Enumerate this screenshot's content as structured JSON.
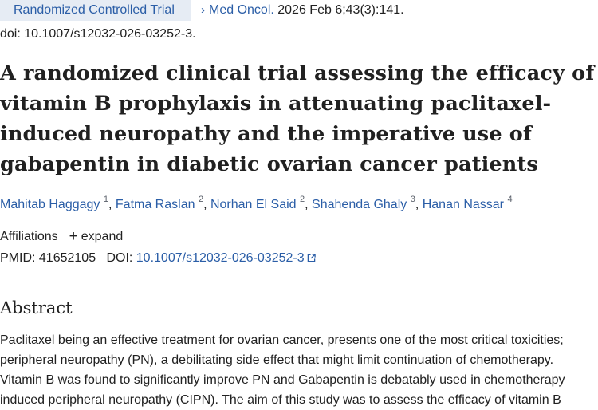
{
  "header": {
    "publication_type": "Randomized Controlled Trial",
    "chevron_glyph": "›",
    "journal": "Med Oncol.",
    "citation": " 2026 Feb 6;43(3):141.",
    "doi_line": "doi: 10.1007/s12032-026-03252-3."
  },
  "title": {
    "line1": "A randomized clinical trial assessing the efficacy of",
    "line2": "vitamin B prophylaxis in attenuating paclitaxel-",
    "line3": "induced neuropathy and the imperative use of",
    "line4": "gabapentin in diabetic ovarian cancer patients"
  },
  "authors": [
    {
      "name": "Mahitab Haggagy",
      "sup": "1"
    },
    {
      "name": "Fatma Raslan",
      "sup": "2"
    },
    {
      "name": "Norhan El Said",
      "sup": "2"
    },
    {
      "name": "Shahenda Ghaly",
      "sup": "3"
    },
    {
      "name": "Hanan Nassar",
      "sup": "4"
    }
  ],
  "affiliations": {
    "label": "Affiliations",
    "expand_icon": "plus-icon",
    "expand_label": "expand"
  },
  "identifiers": {
    "pmid_label": "PMID:",
    "pmid": "41652105",
    "doi_label": "DOI:",
    "doi": "10.1007/s12032-026-03252-3",
    "doi_link_icon": "external-link-icon"
  },
  "abstract": {
    "heading": "Abstract",
    "line1": "Paclitaxel being an effective treatment for ovarian cancer, presents one of the most critical toxicities;",
    "line2": "peripheral neuropathy (PN), a debilitating side effect that might limit continuation of chemotherapy.",
    "line3": "Vitamin B was found to significantly improve PN and Gabapentin is debatably used in chemotherapy",
    "line4": "induced peripheral neuropathy (CIPN). The aim of this study was to assess the efficacy of vitamin B"
  },
  "colors": {
    "link": "#2b5ea7",
    "badge_background": "#e6ecf4",
    "text": "#212121"
  }
}
